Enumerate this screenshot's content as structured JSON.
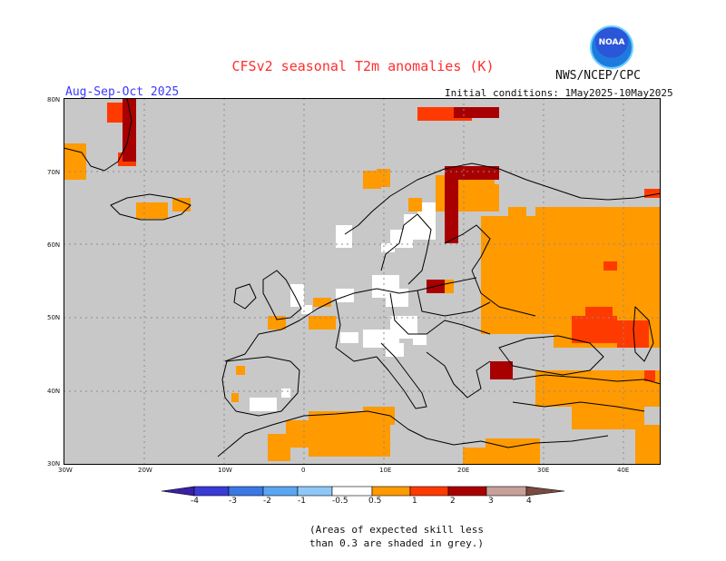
{
  "header": {
    "title": "CFSv2 seasonal T2m anomalies (K)",
    "organization": "NWS/NCEP/CPC",
    "season": "Aug-Sep-Oct 2025",
    "initial_conditions": "Initial conditions: 1May2025-10May2025",
    "logo_text": "NOAA"
  },
  "map": {
    "lat_labels": [
      "80N",
      "70N",
      "60N",
      "50N",
      "40N",
      "30N"
    ],
    "lon_labels": [
      "30W",
      "20W",
      "10W",
      "0",
      "10E",
      "20E",
      "30E",
      "40E"
    ],
    "colors": {
      "skill_mask": "#c8c8c8",
      "land_white": "#ffffff",
      "ocean": "#c8c8c8",
      "coastline": "#000000",
      "gridline": "#8c8c8c"
    },
    "anomaly_categories": [
      "0.5-1 K (orange)",
      "1-2 K (red-orange)",
      "2-3 K (dark red)"
    ]
  },
  "colorbar": {
    "labels": [
      "-4",
      "-3",
      "-2",
      "-1",
      "-0.5",
      "0.5",
      "1",
      "2",
      "3",
      "4"
    ],
    "colors": [
      "#3b1fa6",
      "#3a3ad6",
      "#3b78e6",
      "#5aa6f2",
      "#8fc8f8",
      "#ffffff",
      "#ff9a00",
      "#ff3a00",
      "#a80000",
      "#c8a09a",
      "#7a4a40"
    ]
  },
  "footnote": {
    "line1": "(Areas of expected skill less",
    "line2": "than 0.3 are shaded in grey.)"
  }
}
